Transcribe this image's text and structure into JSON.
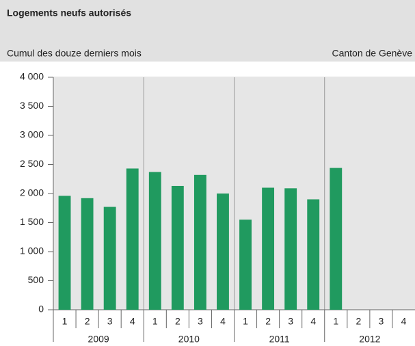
{
  "chart_data": {
    "type": "bar",
    "title": "Logements neufs autorisés",
    "subtitle": "Cumul des douze derniers mois",
    "source": "Canton de Genève",
    "categories": [
      "1",
      "2",
      "3",
      "4",
      "1",
      "2",
      "3",
      "4",
      "1",
      "2",
      "3",
      "4",
      "1",
      "2",
      "3",
      "4"
    ],
    "years": [
      "2009",
      "2010",
      "2011",
      "2012"
    ],
    "values": [
      1960,
      1920,
      1770,
      2430,
      2370,
      2130,
      2320,
      2000,
      1550,
      2100,
      2090,
      1900,
      2440,
      null,
      null,
      null
    ],
    "color": "#209a5f",
    "ylim": [
      0,
      4000
    ],
    "yticks": [
      0,
      500,
      {
        "value": 1000,
        "label": "1 000"
      },
      {
        "value": 1500,
        "label": "1 500"
      },
      {
        "value": 2000,
        "label": "2 000"
      },
      {
        "value": 2500,
        "label": "2 500"
      },
      {
        "value": 3000,
        "label": "3 000"
      },
      {
        "value": 3500,
        "label": "3 500"
      },
      {
        "value": 4000,
        "label": "4 000"
      }
    ]
  }
}
